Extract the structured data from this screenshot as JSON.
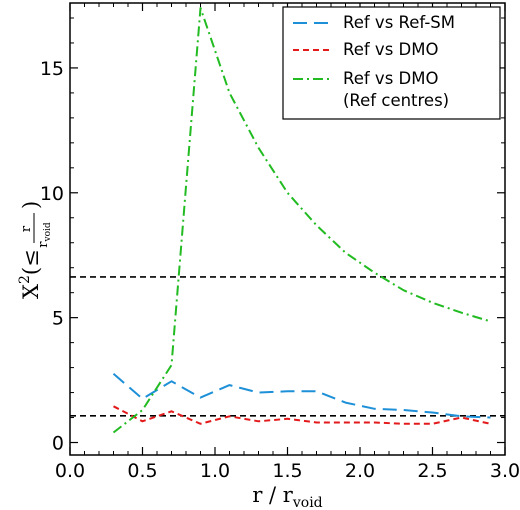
{
  "chart_data": {
    "type": "line",
    "xlabel": {
      "main": "r / r",
      "sub": "void"
    },
    "ylabel": {
      "main": "X",
      "sup": "2",
      "open": "(≤",
      "num": "r",
      "den": "r",
      "den_sub": "void",
      "close": ")"
    },
    "xlim": [
      0.0,
      3.0
    ],
    "ylim": [
      -0.5,
      17.6
    ],
    "xticks": [
      0.0,
      0.5,
      1.0,
      1.5,
      2.0,
      2.5,
      3.0
    ],
    "xtick_labels": [
      "0.0",
      "0.5",
      "1.0",
      "1.5",
      "2.0",
      "2.5",
      "3.0"
    ],
    "yticks": [
      0,
      5,
      10,
      15
    ],
    "ytick_labels": [
      "0",
      "5",
      "10",
      "15"
    ],
    "grid": false,
    "legend_position": "top-right",
    "series": [
      {
        "name": "Ref vs Ref-SM",
        "color": "#1e90d8",
        "dash": "long-dash",
        "x": [
          0.3,
          0.5,
          0.7,
          0.9,
          1.1,
          1.3,
          1.5,
          1.7,
          1.9,
          2.1,
          2.3,
          2.5,
          2.7,
          2.9
        ],
        "y": [
          2.75,
          1.75,
          2.45,
          1.8,
          2.3,
          2.0,
          2.05,
          2.05,
          1.6,
          1.35,
          1.3,
          1.2,
          1.05,
          1.0
        ]
      },
      {
        "name": "Ref vs DMO",
        "color": "#e31a1c",
        "dash": "short-dash",
        "x": [
          0.3,
          0.5,
          0.7,
          0.9,
          1.1,
          1.3,
          1.5,
          1.7,
          1.9,
          2.1,
          2.3,
          2.5,
          2.7,
          2.9
        ],
        "y": [
          1.45,
          0.85,
          1.25,
          0.75,
          1.05,
          0.85,
          0.95,
          0.8,
          0.8,
          0.8,
          0.75,
          0.75,
          1.0,
          0.75
        ]
      },
      {
        "name_lines": [
          "Ref vs DMO",
          "(Ref centres)"
        ],
        "color": "#22bb22",
        "dash": "dash-dot",
        "x": [
          0.3,
          0.5,
          0.7,
          0.9,
          1.1,
          1.3,
          1.5,
          1.7,
          1.9,
          2.1,
          2.3,
          2.5,
          2.7,
          2.9
        ],
        "y": [
          0.4,
          1.3,
          3.1,
          17.4,
          14.0,
          11.8,
          10.0,
          8.7,
          7.6,
          6.8,
          6.1,
          5.6,
          5.2,
          4.85
        ]
      }
    ],
    "reference_lines": [
      {
        "y": 6.63,
        "color": "#000000",
        "dash": "dashed"
      },
      {
        "y": 1.07,
        "color": "#000000",
        "dash": "dashed"
      }
    ]
  }
}
